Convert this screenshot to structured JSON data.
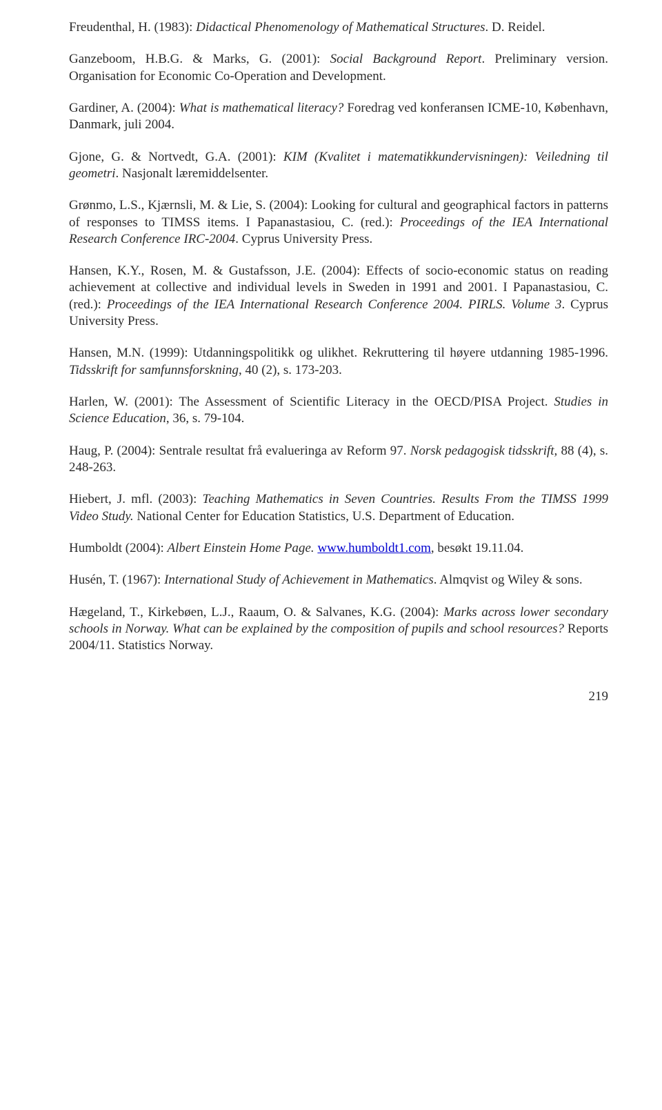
{
  "refs": {
    "r1a": "Freudenthal, H. (1983): ",
    "r1b": "Didactical Phenomenology of Mathematical Structures",
    "r1c": ". D. Reidel.",
    "r2a": "Ganzeboom, H.B.G. & Marks, G. (2001): ",
    "r2b": "Social Background Report",
    "r2c": ". Preliminary version. Organisation for Economic Co-Operation and Development.",
    "r3a": "Gardiner, A. (2004): ",
    "r3b": "What is mathematical literacy?",
    "r3c": " Foredrag ved konferansen ICME-10, København, Danmark, juli 2004.",
    "r4a": "Gjone, G. & Nortvedt, G.A. (2001): ",
    "r4b": "KIM (Kvalitet i matematikkundervisningen): Veiledning til geometri",
    "r4c": ". Nasjonalt læremiddelsenter.",
    "r5a": "Grønmo, L.S., Kjærnsli, M. & Lie, S. (2004): Looking for cultural and geographical factors in patterns of responses to TIMSS items. I Papanastasiou, C. (red.): ",
    "r5b": "Proceedings of the IEA International Research Conference IRC-2004",
    "r5c": ". Cyprus University Press.",
    "r6a": "Hansen, K.Y., Rosen, M. & Gustafsson, J.E. (2004): Effects of socio-economic status on reading achievement at collective and individual levels in Sweden in 1991 and 2001. I Papanastasiou, C. (red.): ",
    "r6b": "Proceedings of the IEA International Research Conference 2004. PIRLS. Volume 3",
    "r6c": ". Cyprus University Press.",
    "r7a": "Hansen, M.N. (1999): Utdanningspolitikk og ulikhet. Rekruttering til høyere utdanning 1985-1996. ",
    "r7b": "Tidsskrift for samfunnsforskning",
    "r7c": ", 40 (2), s. 173-203.",
    "r8a": "Harlen, W. (2001): The Assessment of Scientific Literacy in the OECD/PISA Project. ",
    "r8b": "Studies in Science Education",
    "r8c": ", 36, s. 79-104.",
    "r9a": "Haug, P. (2004): Sentrale resultat frå evalueringa av Reform 97. ",
    "r9b": "Norsk pedagogisk tidsskrift,",
    "r9c": " 88 (4), s. 248-263.",
    "r10a": "Hiebert, J. mfl. (2003): ",
    "r10b": "Teaching Mathematics in Seven Countries. Results From the TIMSS 1999 Video Study.",
    "r10c": " National Center for Education Statistics, U.S. Department of Education.",
    "r11a": "Humboldt (2004): ",
    "r11b": "Albert Einstein Home Page.",
    "r11c": " ",
    "r11link": "www.humboldt1.com",
    "r11d": ", besøkt 19.11.04.",
    "r12a": "Husén, T. (1967): ",
    "r12b": "International Study of Achievement in Mathematics",
    "r12c": ". Almqvist og Wiley & sons.",
    "r13a": "Hægeland, T., Kirkebøen, L.J., Raaum, O. & Salvanes, K.G. (2004): ",
    "r13b": "Marks across lower secondary schools in Norway. What can be explained by the composition of pupils and school resources?",
    "r13c": " Reports 2004/11. Statistics Norway."
  },
  "page_number": "219"
}
